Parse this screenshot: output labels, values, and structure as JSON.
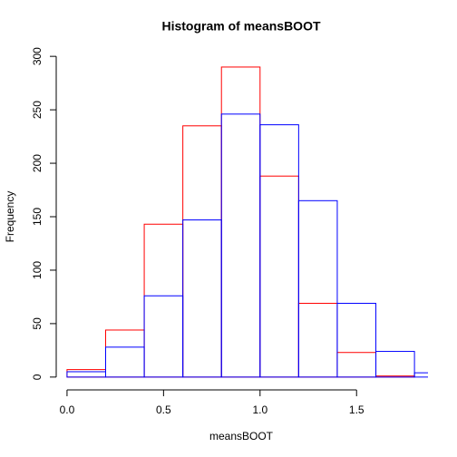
{
  "chart_data": {
    "type": "histogram",
    "title": "Histogram of meansBOOT",
    "x_label": "meansBOOT",
    "y_label": "Frequency",
    "series": [
      {
        "color": "#ff0000",
        "bins": [
          0,
          0.2,
          0.4,
          0.6,
          0.8,
          1.0,
          1.2,
          1.4,
          1.6,
          1.8
        ],
        "values": [
          7,
          44,
          143,
          235,
          290,
          188,
          69,
          23,
          1
        ]
      },
      {
        "color": "#0000ff",
        "bins": [
          0,
          0.2,
          0.4,
          0.6,
          0.8,
          1.0,
          1.2,
          1.4,
          1.6,
          1.8,
          2.0
        ],
        "values": [
          5,
          28,
          76,
          147,
          246,
          236,
          165,
          69,
          24,
          4
        ]
      }
    ],
    "xlim": [
      -0.056,
      1.87
    ],
    "ylim": [
      -12,
      312
    ],
    "xticks": [
      {
        "value": 0,
        "label": "0.0"
      },
      0.5,
      {
        "value": 1,
        "label": "1.0"
      },
      1.5
    ],
    "yticks": [
      0,
      50,
      100,
      150,
      200,
      250,
      300
    ]
  }
}
